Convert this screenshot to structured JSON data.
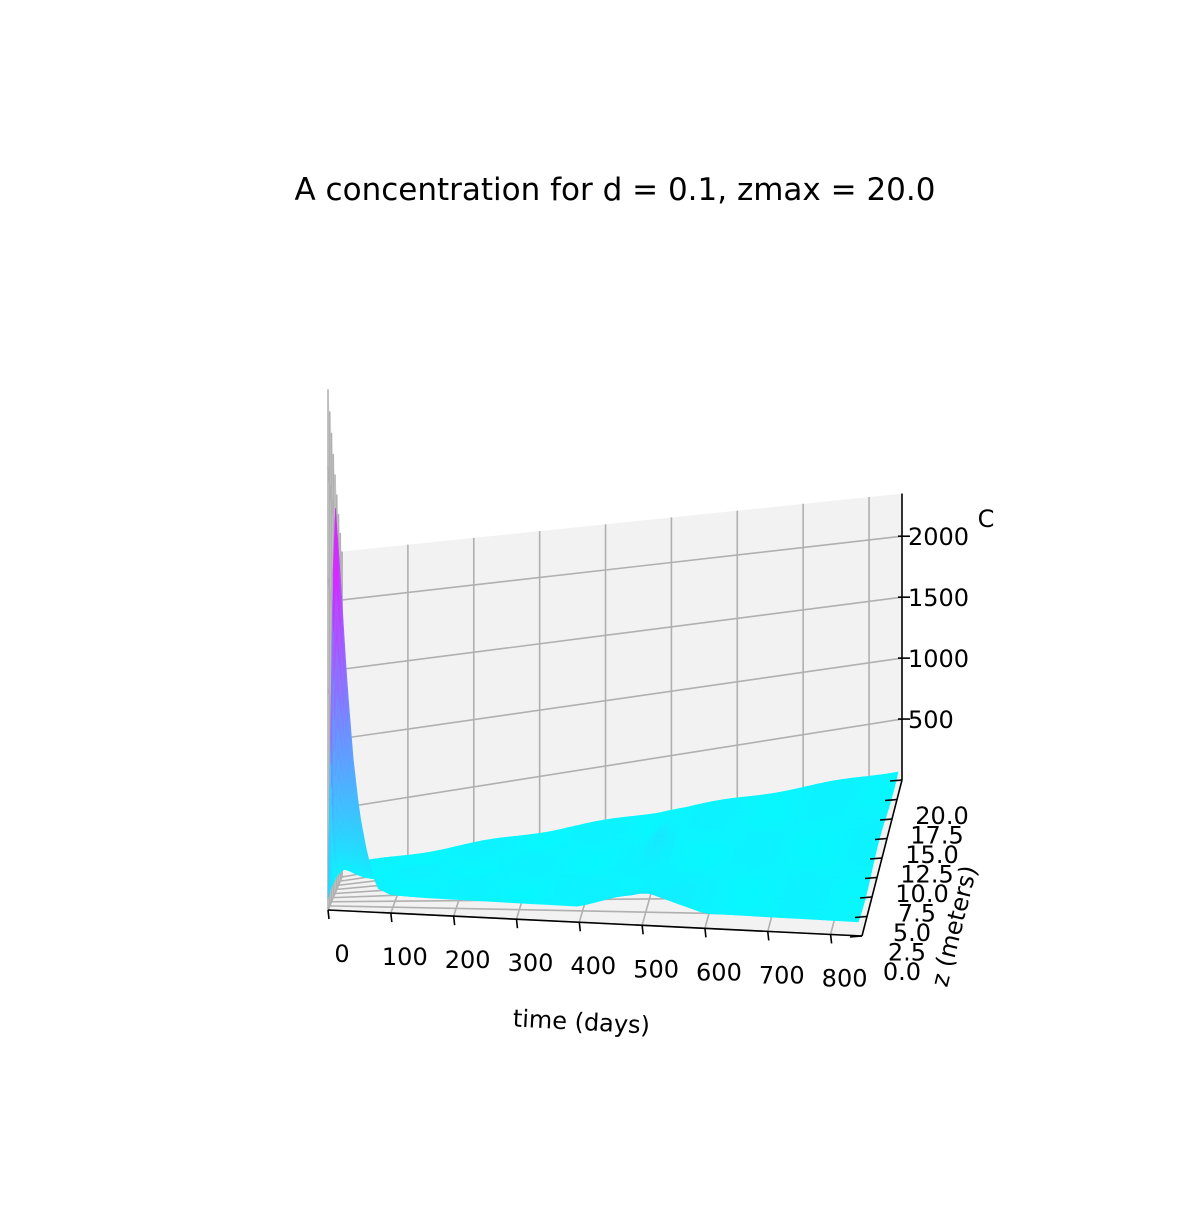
{
  "chart_data": {
    "type": "surface",
    "title": "A concentration for d = 0.1, zmax = 20.0",
    "xlabel": "time (days)",
    "ylabel": "z (meters)",
    "zlabel": "C",
    "x_ticks": [
      "0",
      "100",
      "200",
      "300",
      "400",
      "500",
      "600",
      "700",
      "800"
    ],
    "y_ticks": [
      "0.0",
      "2.5",
      "5.0",
      "7.5",
      "10.0",
      "12.5",
      "15.0",
      "17.5",
      "20.0"
    ],
    "z_ticks": [
      "500",
      "1000",
      "1500",
      "2000"
    ],
    "xlim": [
      0,
      850
    ],
    "ylim": [
      0,
      20
    ],
    "zlim": [
      0,
      2350
    ],
    "grid": true,
    "colormap": "cool",
    "colors": {
      "low": "#00ffff",
      "high": "#ff00ff",
      "pane": "#f2f2f2",
      "grid": "#b0b0b0"
    },
    "peak": {
      "time": 10,
      "z": 0.0,
      "value": 1900
    },
    "baseline_value": 80,
    "secondary_bump": {
      "time": 500,
      "value": 180
    },
    "profile_at_shallowest_depth": {
      "time": [
        0,
        10,
        20,
        30,
        40,
        50,
        60,
        70,
        80,
        100,
        150,
        200,
        400,
        500,
        600,
        800
      ],
      "C": [
        50,
        1900,
        1500,
        1050,
        700,
        450,
        300,
        180,
        110,
        85,
        80,
        80,
        80,
        180,
        80,
        80
      ]
    }
  }
}
